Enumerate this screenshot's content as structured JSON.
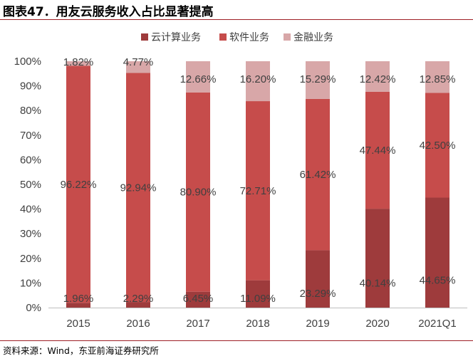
{
  "header": {
    "title": "图表47．用友云服务收入占比显著提高"
  },
  "footer": {
    "source": "资料来源：Wind，东亚前海证券研究所"
  },
  "colors": {
    "cloud": "#9e3b3c",
    "software": "#c64c4b",
    "finance": "#d8a7a8",
    "rule": "#9e1f24"
  },
  "chart_data": {
    "type": "bar",
    "stacked": true,
    "percent": true,
    "title": "",
    "categories": [
      "2015",
      "2016",
      "2017",
      "2018",
      "2019",
      "2020",
      "2021Q1"
    ],
    "series": [
      {
        "name": "云计算业务",
        "color": "#9e3b3c",
        "values": [
          1.96,
          2.29,
          6.45,
          11.09,
          23.29,
          40.14,
          44.65
        ],
        "labels": [
          "1.96%",
          "2.29%",
          "6.45%",
          "11.09%",
          "23.29%",
          "40.14%",
          "44.65%"
        ]
      },
      {
        "name": "软件业务",
        "color": "#c64c4b",
        "values": [
          96.22,
          92.94,
          80.9,
          72.71,
          61.42,
          47.44,
          42.5
        ],
        "labels": [
          "96.22%",
          "92.94%",
          "80.90%",
          "72.71%",
          "61.42%",
          "47.44%",
          "42.50%"
        ]
      },
      {
        "name": "金融业务",
        "color": "#d8a7a8",
        "values": [
          1.82,
          4.77,
          12.66,
          16.2,
          15.29,
          12.42,
          12.85
        ],
        "labels": [
          "1.82%",
          "4.77%",
          "12.66%",
          "16.20%",
          "15.29%",
          "12.42%",
          "12.85%"
        ]
      }
    ],
    "ylim": [
      0,
      100
    ],
    "yticks": [
      "0%",
      "10%",
      "20%",
      "30%",
      "40%",
      "50%",
      "60%",
      "70%",
      "80%",
      "90%",
      "100%"
    ],
    "xlabel": "",
    "ylabel": "",
    "legend": "top-center",
    "grid": false
  }
}
